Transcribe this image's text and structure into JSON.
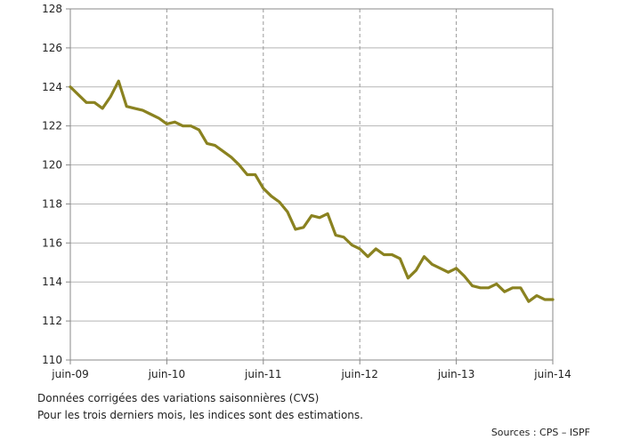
{
  "chart_data": {
    "type": "line",
    "title": "",
    "xlabel": "",
    "ylabel": "",
    "ylim": [
      110,
      128
    ],
    "yticks": [
      110,
      112,
      114,
      116,
      118,
      120,
      122,
      124,
      126,
      128
    ],
    "xticks": [
      {
        "label": "juin-09",
        "index": 0
      },
      {
        "label": "juin-10",
        "index": 12
      },
      {
        "label": "juin-11",
        "index": 24
      },
      {
        "label": "juin-12",
        "index": 36
      },
      {
        "label": "juin-13",
        "index": 48
      },
      {
        "label": "juin-14",
        "index": 60
      }
    ],
    "grid": true,
    "legend": "none",
    "series": [
      {
        "color": "#8a8220",
        "values": [
          124.0,
          123.6,
          123.2,
          123.2,
          122.9,
          123.5,
          124.3,
          123.0,
          122.9,
          122.8,
          122.6,
          122.4,
          122.1,
          122.2,
          122.0,
          122.0,
          121.8,
          121.1,
          121.0,
          120.7,
          120.4,
          120.0,
          119.5,
          119.5,
          118.8,
          118.4,
          118.1,
          117.6,
          116.7,
          116.8,
          117.4,
          117.3,
          117.5,
          116.4,
          116.3,
          115.9,
          115.7,
          115.3,
          115.7,
          115.4,
          115.4,
          115.2,
          114.2,
          114.6,
          115.3,
          114.9,
          114.7,
          114.5,
          114.7,
          114.3,
          113.8,
          113.7,
          113.7,
          113.9,
          113.5,
          113.7,
          113.7,
          113.0,
          113.3,
          113.1,
          113.1
        ]
      }
    ]
  },
  "notes": {
    "line1": "Données corrigées des variations saisonnières (CVS)",
    "line2": "Pour les trois derniers mois, les indices sont des estimations."
  },
  "source": "Sources : CPS – ISPF"
}
